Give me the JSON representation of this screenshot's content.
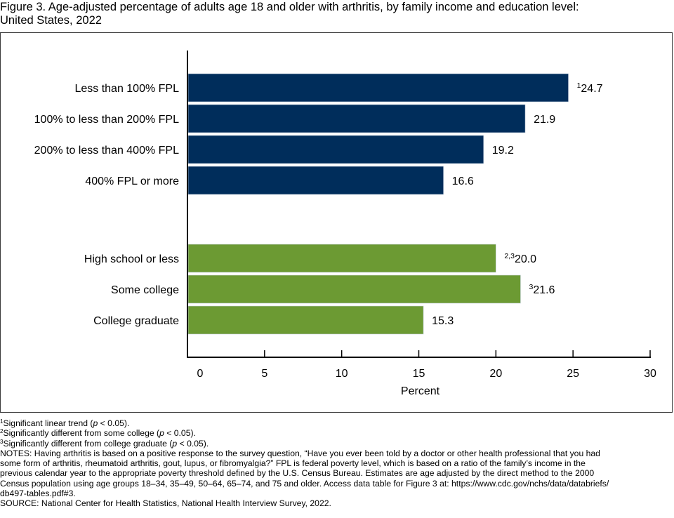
{
  "title_line1": "Figure 3. Age-adjusted percentage of adults age 18 and older with arthritis, by family income and education level:",
  "title_line2": "United States, 2022",
  "colors": {
    "income": "#002d5b",
    "education": "#6c9a33",
    "axis": "#000000",
    "frame": "#3a3a3a"
  },
  "chart_data": {
    "type": "bar",
    "orientation": "horizontal",
    "title": "Age-adjusted percentage of adults age 18 and older with arthritis, by family income and education level: United States, 2022",
    "xlabel": "Percent",
    "ylabel": "",
    "xlim": [
      0,
      30
    ],
    "xticks": [
      0,
      5,
      10,
      15,
      20,
      25,
      30
    ],
    "grid": false,
    "legend": "none",
    "groups": [
      {
        "name": "Family income",
        "color": "#002d5b",
        "categories": [
          "Less than 100% FPL",
          "100% to less than 200% FPL",
          "200% to less than 400% FPL",
          "400% FPL or more"
        ],
        "values": [
          24.7,
          21.9,
          19.2,
          16.6
        ],
        "value_labels": [
          "24.7",
          "21.9",
          "19.2",
          "16.6"
        ],
        "superscripts": [
          "1",
          "",
          "",
          ""
        ]
      },
      {
        "name": "Education level",
        "color": "#6c9a33",
        "categories": [
          "High school or less",
          "Some college",
          "College graduate"
        ],
        "values": [
          20.0,
          21.6,
          15.3
        ],
        "value_labels": [
          "20.0",
          "21.6",
          "15.3"
        ],
        "superscripts": [
          "2,3",
          "3",
          ""
        ]
      }
    ]
  },
  "footnotes": {
    "fn1_sup": "1",
    "fn1_a": "Significant linear trend (",
    "fn1_p": "p",
    "fn1_b": " < 0.05).",
    "fn2_sup": "2",
    "fn2_a": "Significantly different from some college (",
    "fn2_p": "p",
    "fn2_b": " < 0.05).",
    "fn3_sup": "3",
    "fn3_a": "Significantly different from college graduate (",
    "fn3_p": "p",
    "fn3_b": " < 0.05).",
    "notes_1": "NOTES: Having arthritis is based on a positive response to the survey question, “Have you ever been told by a doctor or other health professional that you had",
    "notes_2": "some form of arthritis, rheumatoid arthritis, gout, lupus, or fibromyalgia?” FPL is federal poverty level, which is based on a ratio of the family’s income in the",
    "notes_3": "previous calendar year to the appropriate poverty threshold defined by the U.S. Census Bureau. Estimates are age adjusted by the direct method to the 2000",
    "notes_4": "Census population using age groups 18–34, 35–49, 50–64, 65–74, and 75 and older. Access data table for Figure 3 at: https://www.cdc.gov/nchs/data/databriefs/",
    "notes_5": "db497-tables.pdf#3.",
    "source": "SOURCE: National Center for Health Statistics, National Health Interview Survey, 2022."
  }
}
